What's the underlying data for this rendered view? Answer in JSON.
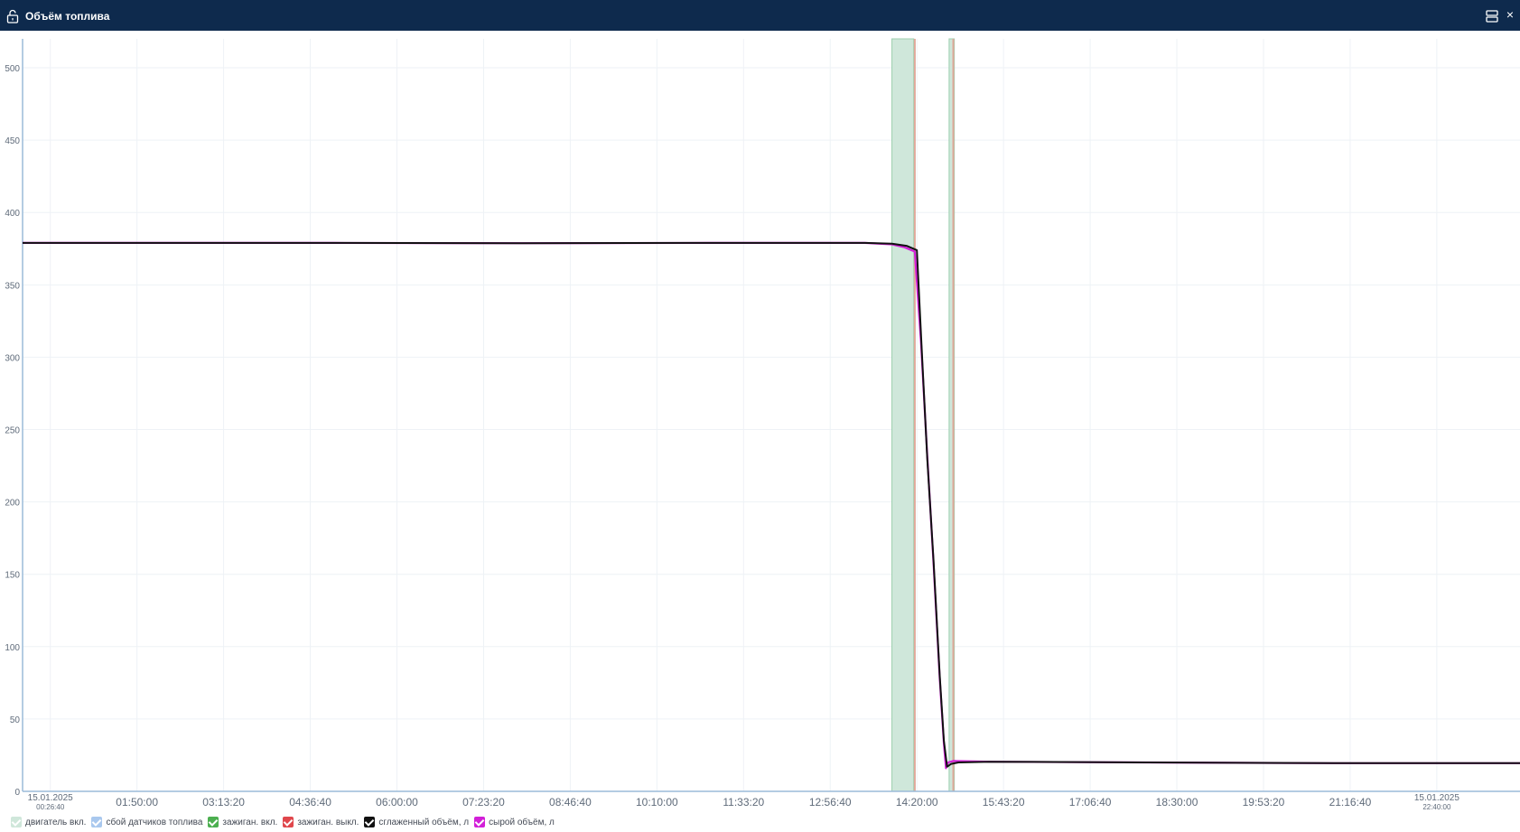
{
  "window": {
    "title": "Объём топлива",
    "lock_icon": "lock-open-icon",
    "layout_icon": "layout-icon",
    "close_icon": "close-icon",
    "close_glyph": "×"
  },
  "colors": {
    "titlebar_bg": "#0e2a4d",
    "axis": "#9bbbd9",
    "grid": "#eef2f6",
    "tick_text": "#5f6b7a",
    "engine_on_band": "#cfe7da",
    "engine_on_edge": "#9ccfae",
    "ignition_off_line": "#e0a89a",
    "smoothed": "#111111",
    "raw": "#d21fd8"
  },
  "chart_data": {
    "type": "line",
    "ylim": [
      0,
      520
    ],
    "y_ticks": [
      0,
      50,
      100,
      150,
      200,
      250,
      300,
      350,
      400,
      450,
      500
    ],
    "x_range": [
      "00:00:00",
      "24:00:00"
    ],
    "x_ticks": [
      {
        "time": "00:26:40",
        "label": "15.01.2025",
        "sublabel": "00:26:40"
      },
      {
        "time": "01:50:00",
        "label": "01:50:00"
      },
      {
        "time": "03:13:20",
        "label": "03:13:20"
      },
      {
        "time": "04:36:40",
        "label": "04:36:40"
      },
      {
        "time": "06:00:00",
        "label": "06:00:00"
      },
      {
        "time": "07:23:20",
        "label": "07:23:20"
      },
      {
        "time": "08:46:40",
        "label": "08:46:40"
      },
      {
        "time": "10:10:00",
        "label": "10:10:00"
      },
      {
        "time": "11:33:20",
        "label": "11:33:20"
      },
      {
        "time": "12:56:40",
        "label": "12:56:40"
      },
      {
        "time": "14:20:00",
        "label": "14:20:00"
      },
      {
        "time": "15:43:20",
        "label": "15:43:20"
      },
      {
        "time": "17:06:40",
        "label": "17:06:40"
      },
      {
        "time": "18:30:00",
        "label": "18:30:00"
      },
      {
        "time": "19:53:20",
        "label": "19:53:20"
      },
      {
        "time": "21:16:40",
        "label": "21:16:40"
      },
      {
        "time": "22:40:00",
        "label": "15.01.2025",
        "sublabel": "22:40:00"
      }
    ],
    "engine_on_intervals": [
      [
        "13:56:00",
        "14:17:00"
      ],
      [
        "14:51:00",
        "14:56:00"
      ]
    ],
    "ignition_off_times": [
      "14:18:00",
      "14:55:00"
    ],
    "series": [
      {
        "name": "сглаженный объём, л",
        "points": [
          [
            "00:00:00",
            379
          ],
          [
            "02:00:00",
            379
          ],
          [
            "05:00:00",
            379
          ],
          [
            "08:00:00",
            378.8
          ],
          [
            "11:00:00",
            379
          ],
          [
            "13:30:00",
            379
          ],
          [
            "13:56:00",
            378.5
          ],
          [
            "14:10:00",
            377
          ],
          [
            "14:20:00",
            374
          ],
          [
            "14:25:00",
            300
          ],
          [
            "14:30:00",
            230
          ],
          [
            "14:36:00",
            160
          ],
          [
            "14:42:00",
            80
          ],
          [
            "14:46:00",
            35
          ],
          [
            "14:49:00",
            17
          ],
          [
            "14:53:00",
            19
          ],
          [
            "15:00:00",
            20
          ],
          [
            "15:30:00",
            20.5
          ],
          [
            "18:00:00",
            20
          ],
          [
            "21:00:00",
            19.5
          ],
          [
            "24:00:00",
            19.5
          ]
        ]
      },
      {
        "name": "сырой объём, л",
        "points": [
          [
            "00:00:00",
            379
          ],
          [
            "02:00:00",
            379
          ],
          [
            "05:00:00",
            379
          ],
          [
            "08:00:00",
            378.8
          ],
          [
            "11:00:00",
            379
          ],
          [
            "13:30:00",
            379
          ],
          [
            "13:56:00",
            378
          ],
          [
            "14:08:00",
            376
          ],
          [
            "14:18:00",
            373
          ],
          [
            "14:24:00",
            310
          ],
          [
            "14:30:00",
            232
          ],
          [
            "14:36:00",
            158
          ],
          [
            "14:42:00",
            78
          ],
          [
            "14:46:00",
            33
          ],
          [
            "14:48:00",
            16
          ],
          [
            "14:50:00",
            20
          ],
          [
            "14:55:00",
            21
          ],
          [
            "15:30:00",
            20.5
          ],
          [
            "18:00:00",
            20
          ],
          [
            "21:00:00",
            19.5
          ],
          [
            "24:00:00",
            19.5
          ]
        ]
      }
    ],
    "legend": [
      {
        "label": "двигатель вкл.",
        "color": "#cfe7da"
      },
      {
        "label": "сбой датчиков топлива",
        "color": "#a9c8ee"
      },
      {
        "label": "зажиган. вкл.",
        "color": "#4caf50"
      },
      {
        "label": "зажиган. выкл.",
        "color": "#e0474c"
      },
      {
        "label": "сглаженный объём, л",
        "color": "#111111"
      },
      {
        "label": "сырой объём, л",
        "color": "#d21fd8"
      }
    ]
  }
}
